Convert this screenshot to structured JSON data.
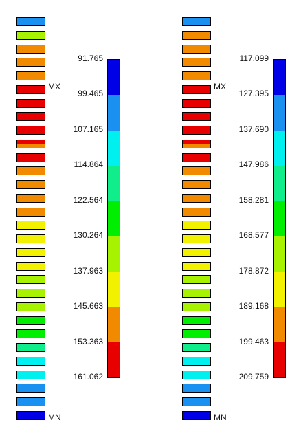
{
  "colors": {
    "blue": "#0000e6",
    "lightblue": "#1a90f0",
    "cyan": "#00f0f0",
    "mint": "#10ee8c",
    "green": "#00ee00",
    "yellowgreen": "#a6f200",
    "yellow": "#f2f200",
    "orange": "#f28a00",
    "red": "#e80000"
  },
  "panels": [
    {
      "markers": {
        "max": "MX",
        "min": "MN"
      },
      "elements": [
        "lightblue",
        "yellowgreen",
        "orange",
        "orange",
        "orange",
        "red",
        "red",
        "red",
        "red",
        "split",
        "red",
        "orange",
        "orange",
        "orange",
        "orange",
        "yellow",
        "yellow",
        "yellow",
        "yellow",
        "yellowgreen",
        "yellowgreen",
        "yellowgreen",
        "green",
        "green",
        "mint",
        "cyan",
        "cyan",
        "lightblue",
        "lightblue",
        "blue"
      ],
      "ticks": [
        "91.765",
        "99.465",
        "107.165",
        "114.864",
        "122.564",
        "130.264",
        "137.963",
        "145.663",
        "153.363",
        "161.062"
      ],
      "bar": [
        "blue",
        "lightblue",
        "cyan",
        "mint",
        "green",
        "yellowgreen",
        "yellow",
        "orange",
        "red"
      ]
    },
    {
      "markers": {
        "max": "MX",
        "min": "MN"
      },
      "elements": [
        "lightblue",
        "orange",
        "orange",
        "orange",
        "orange",
        "red",
        "red",
        "red",
        "red",
        "split",
        "red",
        "orange",
        "orange",
        "orange",
        "orange",
        "yellow",
        "yellow",
        "yellow",
        "yellow",
        "yellowgreen",
        "yellowgreen",
        "yellowgreen",
        "green",
        "green",
        "mint",
        "cyan",
        "cyan",
        "lightblue",
        "lightblue",
        "blue"
      ],
      "ticks": [
        "117.099",
        "127.395",
        "137.690",
        "147.986",
        "158.281",
        "168.577",
        "178.872",
        "189.168",
        "199.463",
        "209.759"
      ],
      "bar": [
        "blue",
        "lightblue",
        "cyan",
        "mint",
        "green",
        "yellowgreen",
        "yellow",
        "orange",
        "red"
      ]
    }
  ]
}
